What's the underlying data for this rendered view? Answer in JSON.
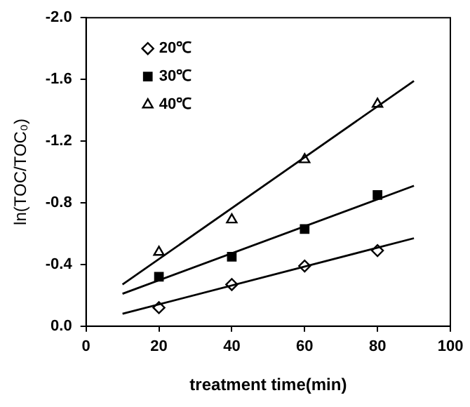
{
  "chart_data": {
    "type": "scatter",
    "xlabel": "treatment time(min)",
    "ylabel": "ln(TOC/TOC₀)",
    "xlim": [
      0,
      100
    ],
    "xticks": [
      0,
      20,
      40,
      60,
      80,
      100
    ],
    "ylim": [
      0,
      -2.0
    ],
    "yticks": [
      {
        "value": 0,
        "label": "0.0"
      },
      -0.4,
      -0.8,
      -1.2,
      -1.6,
      {
        "value": -2.0,
        "label": "-2.0"
      }
    ],
    "grid": false,
    "legend": "top left",
    "series": [
      {
        "name": "20℃",
        "color": "#000000",
        "marker": "diamond",
        "x": [
          20,
          40,
          60,
          80
        ],
        "values": [
          -0.12,
          -0.27,
          -0.39,
          -0.49
        ]
      },
      {
        "name": "30℃",
        "color": "#000000",
        "marker": "square",
        "x": [
          20,
          40,
          60,
          80
        ],
        "values": [
          -0.32,
          -0.45,
          -0.63,
          -0.85
        ]
      },
      {
        "name": "40℃",
        "color": "#000000",
        "marker": "triangle",
        "x": [
          20,
          40,
          60,
          80
        ],
        "values": [
          -0.48,
          -0.69,
          -1.08,
          -1.44
        ]
      },
      {
        "type": "line",
        "color": "#000000",
        "marker": "none",
        "x": [
          10,
          90
        ],
        "values": [
          -0.08,
          -0.57
        ]
      },
      {
        "type": "line",
        "color": "#000000",
        "marker": "none",
        "x": [
          10,
          90
        ],
        "values": [
          -0.21,
          -0.91
        ]
      },
      {
        "type": "line",
        "color": "#000000",
        "marker": "none",
        "x": [
          10,
          90
        ],
        "values": [
          -0.27,
          -1.59
        ]
      }
    ]
  }
}
